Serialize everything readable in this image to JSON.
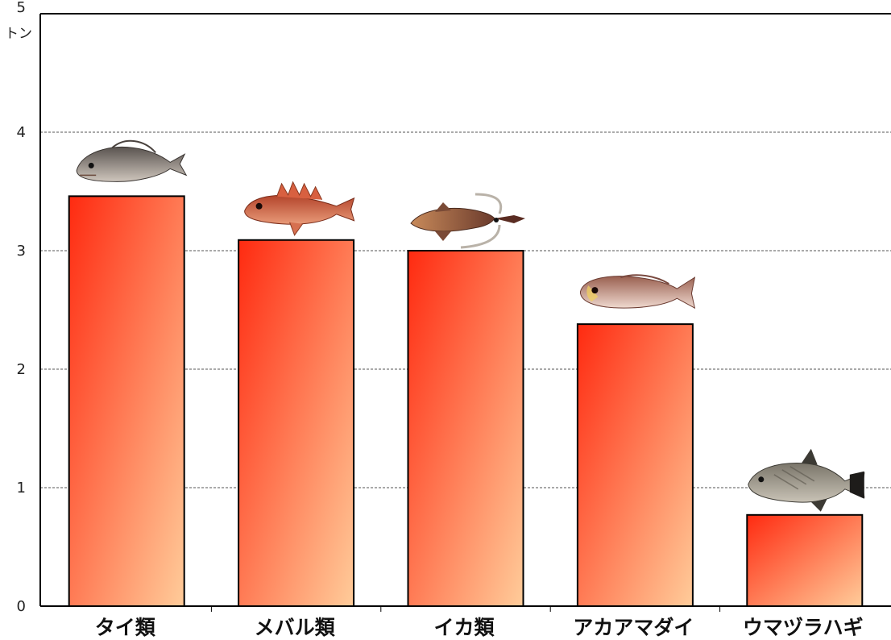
{
  "chart_data": {
    "type": "bar",
    "categories": [
      "タイ類",
      "メバル類",
      "イカ類",
      "アカアマダイ",
      "ウマヅラハギ"
    ],
    "values": [
      3.46,
      3.09,
      3.0,
      2.38,
      0.77
    ],
    "ylim": [
      0,
      5
    ],
    "yticks": [
      0,
      1,
      2,
      3,
      4,
      5
    ],
    "y_unit_label": "トン",
    "grid": true,
    "grid_style": "dashed",
    "bar_gradient": [
      "#ff2a10",
      "#ffcc9a"
    ],
    "icons": [
      "sea-bream-icon",
      "rockfish-icon",
      "squid-icon",
      "tilefish-icon",
      "filefish-icon"
    ]
  }
}
